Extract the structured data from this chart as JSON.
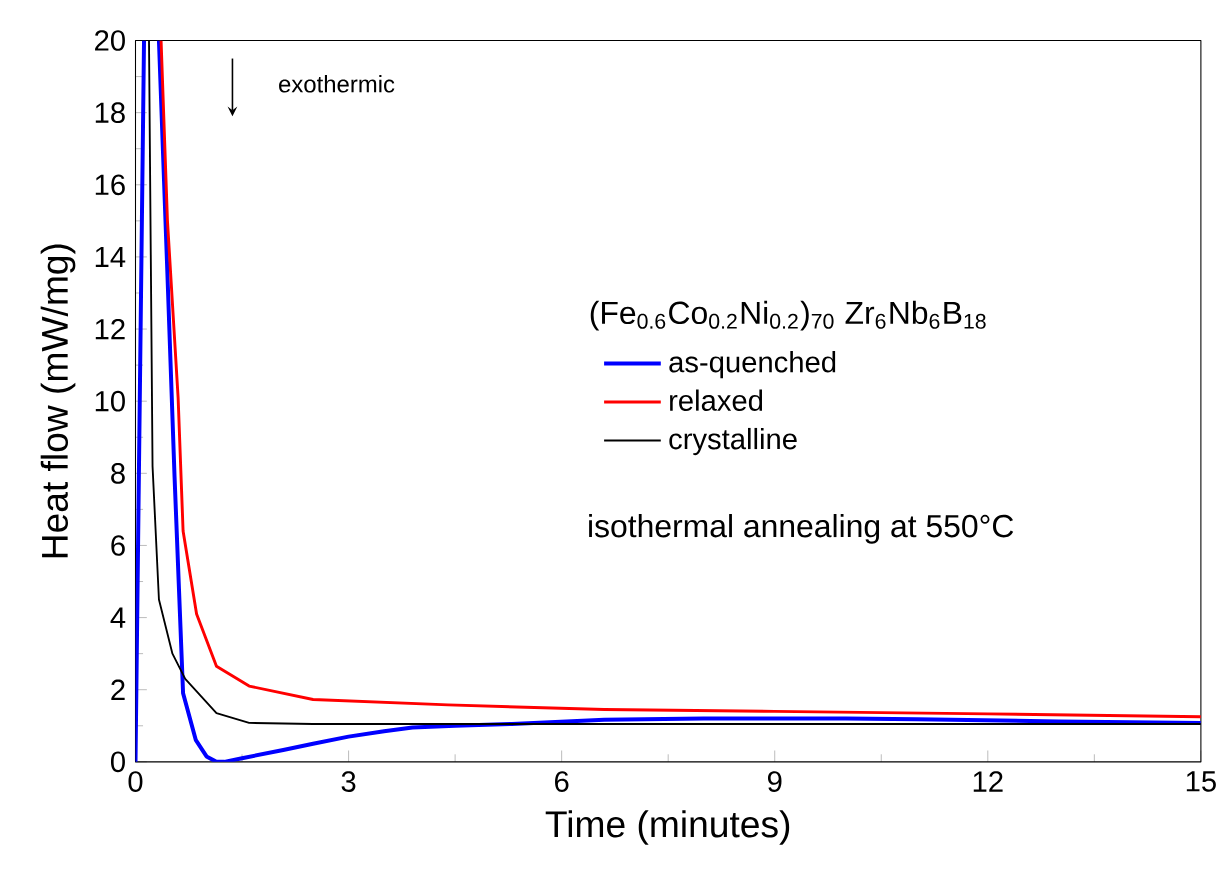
{
  "chart_data": {
    "type": "line",
    "xlabel": "Time (minutes)",
    "ylabel": "Heat flow (mW/mg)",
    "legend_title": "(Fe$_{0.6}$Co$_{0.2}$Ni$_{0.2}$)$_{70}$ Zr$_{6}$Nb$_{6}$B$_{18}$",
    "annotations": [
      "exothermic",
      "isothermal annealing at 550°C"
    ],
    "xlim": [
      0,
      15
    ],
    "ylim": [
      0,
      20
    ],
    "xticks": [
      0,
      3,
      6,
      9,
      12,
      15
    ],
    "yticks": [
      0,
      2,
      4,
      6,
      8,
      10,
      12,
      14,
      16,
      18,
      20
    ],
    "grid": false,
    "legend": "right",
    "marker": "none",
    "line_style": "solid",
    "series": [
      {
        "name": "as-quenched",
        "color": "#0000ff",
        "x": [
          0,
          0.12,
          0.2,
          0.33,
          0.45,
          0.55,
          0.67,
          0.85,
          1.0,
          1.14,
          1.25,
          1.5,
          2.08,
          2.5,
          3.0,
          3.5,
          3.9,
          4.5,
          5.3,
          6.6,
          8,
          9,
          10,
          11,
          12,
          13,
          14,
          15
        ],
        "values": [
          0,
          20,
          null,
          20,
          13.5,
          7.9,
          1.9,
          0.6,
          0.15,
          0,
          0,
          0.1,
          0.33,
          0.5,
          0.7,
          0.85,
          0.95,
          1.0,
          1.05,
          1.17,
          1.2,
          1.2,
          1.2,
          1.18,
          1.15,
          1.12,
          1.1,
          1.08
        ]
      },
      {
        "name": "relaxed",
        "color": "#ff0000",
        "x": [
          0.36,
          0.45,
          0.6,
          0.67,
          0.86,
          1.14,
          1.6,
          2.5,
          4.4,
          6.6,
          9,
          12,
          15
        ],
        "values": [
          20,
          15,
          10.1,
          6.4,
          4.1,
          2.65,
          2.1,
          1.73,
          1.58,
          1.45,
          1.4,
          1.33,
          1.25
        ]
      },
      {
        "name": "crystalline",
        "color": "#000000",
        "x": [
          0.19,
          0.24,
          0.33,
          0.52,
          0.7,
          1.14,
          1.6,
          2.5,
          4,
          6,
          9,
          12,
          15
        ],
        "values": [
          20,
          8.2,
          4.5,
          3.0,
          2.3,
          1.35,
          1.08,
          1.05,
          1.05,
          1.05,
          1.05,
          1.05,
          1.05
        ]
      }
    ]
  }
}
